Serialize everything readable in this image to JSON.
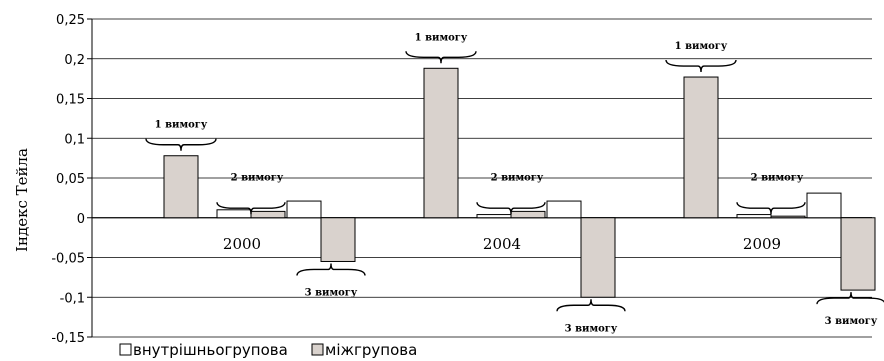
{
  "chart_data": {
    "type": "bar",
    "ylabel": "Індекс Тейла",
    "ylim": [
      -0.15,
      0.25
    ],
    "yticks": [
      0.25,
      0.2,
      0.15,
      0.1,
      0.05,
      0,
      -0.05,
      -0.1,
      -0.15
    ],
    "ytick_labels": [
      "0,25",
      "0,2",
      "0,15",
      "0,1",
      "0,05",
      "0",
      "-0,05",
      "-0,1",
      "-0,15"
    ],
    "grid": true,
    "legend_position": "bottom-left",
    "categories": [
      "2000",
      "2004",
      "2009"
    ],
    "series": [
      {
        "name": "внутрішньогрупова",
        "color": "#ffffff"
      },
      {
        "name": "міжгрупова",
        "color": "#d9d2cd"
      }
    ],
    "groups": [
      {
        "category": "2000",
        "values": [
          {
            "label": "1 вимогу",
            "inner": null,
            "between": 0.078
          },
          {
            "label": "2 вимогу",
            "inner": 0.01,
            "between": 0.008
          },
          {
            "label": "3 вимогу",
            "inner": 0.021,
            "between": -0.055
          }
        ]
      },
      {
        "category": "2004",
        "values": [
          {
            "label": "1 вимогу",
            "inner": null,
            "between": 0.188
          },
          {
            "label": "2 вимогу",
            "inner": 0.004,
            "between": 0.008
          },
          {
            "label": "3 вимогу",
            "inner": 0.021,
            "between": -0.1
          }
        ]
      },
      {
        "category": "2009",
        "values": [
          {
            "label": "1 вимогу",
            "inner": null,
            "between": 0.177
          },
          {
            "label": "2 вимогу",
            "inner": 0.004,
            "between": 0.002
          },
          {
            "label": "3 вимогу",
            "inner": 0.031,
            "between": -0.091
          }
        ]
      }
    ]
  }
}
